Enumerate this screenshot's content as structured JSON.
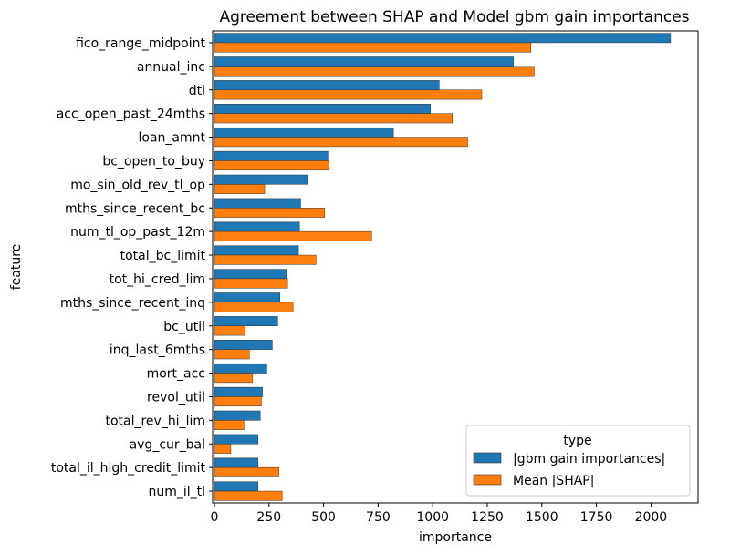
{
  "chart_data": {
    "type": "bar",
    "orientation": "horizontal",
    "title": "Agreement between SHAP and Model gbm gain importances",
    "xlabel": "importance",
    "ylabel": "feature",
    "xlim": [
      0,
      2200
    ],
    "xticks": [
      0,
      250,
      500,
      750,
      1000,
      1250,
      1500,
      1750,
      2000
    ],
    "grid": false,
    "legend": {
      "title": "type",
      "placement": "lower-right"
    },
    "categories": [
      "fico_range_midpoint",
      "annual_inc",
      "dti",
      "acc_open_past_24mths",
      "loan_amnt",
      "bc_open_to_buy",
      "mo_sin_old_rev_tl_op",
      "mths_since_recent_bc",
      "num_tl_op_past_12m",
      "total_bc_limit",
      "tot_hi_cred_lim",
      "mths_since_recent_inq",
      "bc_util",
      "inq_last_6mths",
      "mort_acc",
      "revol_util",
      "total_rev_hi_lim",
      "avg_cur_bal",
      "total_il_high_credit_limit",
      "num_il_tl"
    ],
    "series": [
      {
        "name": "|gbm gain importances|",
        "color": "#1f77b4",
        "values": [
          2090,
          1370,
          1030,
          990,
          820,
          520,
          425,
          395,
          390,
          385,
          330,
          300,
          290,
          265,
          240,
          220,
          210,
          200,
          200,
          200
        ]
      },
      {
        "name": "Mean |SHAP|",
        "color": "#ff7f0e",
        "values": [
          1450,
          1465,
          1225,
          1090,
          1160,
          525,
          230,
          505,
          720,
          465,
          335,
          360,
          140,
          160,
          175,
          215,
          135,
          75,
          295,
          310
        ]
      }
    ]
  }
}
